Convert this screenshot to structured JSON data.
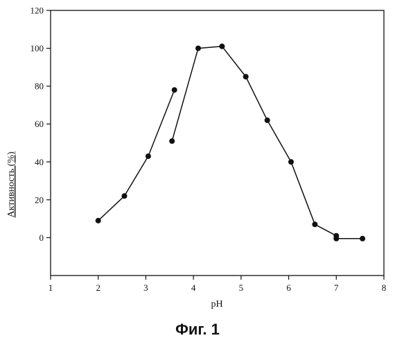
{
  "chart_data": {
    "type": "line",
    "xlabel": "pH",
    "ylabel": "Активность (%)",
    "xlim": [
      1,
      8
    ],
    "ylim": [
      -20,
      120
    ],
    "xticks": [
      "1",
      "2",
      "3",
      "4",
      "5",
      "6",
      "7",
      "8"
    ],
    "yticks": [
      "0",
      "20",
      "40",
      "60",
      "80",
      "100",
      "120"
    ],
    "grid": false,
    "series": [
      {
        "points": [
          [
            2.0,
            9
          ],
          [
            2.55,
            22
          ],
          [
            3.05,
            43
          ],
          [
            3.6,
            78
          ]
        ]
      },
      {
        "points": [
          [
            3.55,
            51
          ],
          [
            4.1,
            100
          ],
          [
            4.6,
            101
          ],
          [
            5.1,
            85
          ],
          [
            5.55,
            62
          ],
          [
            6.05,
            40
          ],
          [
            6.55,
            7
          ],
          [
            7.0,
            1
          ],
          [
            7.0,
            -0.5
          ],
          [
            7.55,
            -0.5
          ]
        ]
      }
    ],
    "marker": "circle",
    "color": "#111111"
  },
  "caption": "Фиг. 1"
}
